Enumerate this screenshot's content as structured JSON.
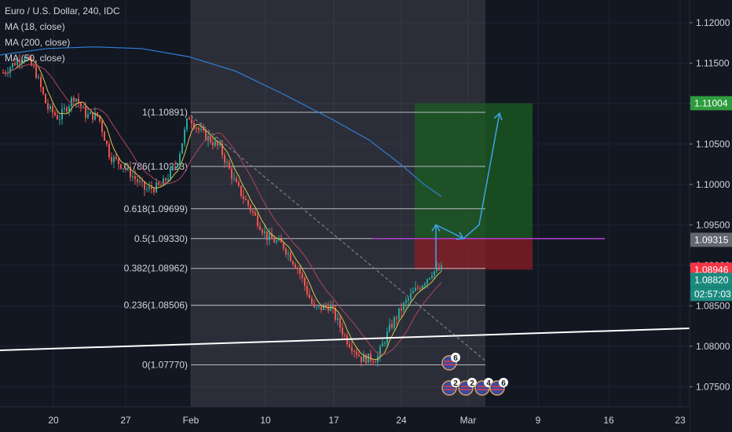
{
  "legend": {
    "symbol": "Euro / U.S. Dollar, 240, IDC",
    "indicators": [
      "MA (18, close)",
      "MA (200, close)",
      "MA (50, close)"
    ]
  },
  "colors": {
    "background": "#131722",
    "ma18": "#d8c84e",
    "ma200": "#2f7fd6",
    "ma50": "#b0455d",
    "up": "#26a69a",
    "down": "#ef5350",
    "fib": "#b8bac2",
    "target_zone": "#1b5e20",
    "stop_zone": "#8e1c24",
    "projection": "#3ea4e8",
    "horizontal": "#b040d0",
    "trendline": "#ffffff"
  },
  "chart_data": {
    "type": "candlestick",
    "x_tick_labels": [
      "20",
      "27",
      "Feb",
      "10",
      "17",
      "24",
      "Mar",
      "9",
      "16",
      "23"
    ],
    "y_tick_labels": [
      "1.12000",
      "1.11500",
      "1.11000",
      "1.10500",
      "1.10000",
      "1.09500",
      "1.09000",
      "1.08500",
      "1.08000",
      "1.07500"
    ],
    "ylim": [
      1.0725,
      1.1228
    ],
    "fibonacci": [
      {
        "label": "1(1.10891)",
        "level": 1.10891
      },
      {
        "label": "0.786(1.10223)",
        "level": 1.10223
      },
      {
        "label": "0.618(1.09699)",
        "level": 1.09699
      },
      {
        "label": "0.5(1.09330)",
        "level": 1.0933
      },
      {
        "label": "0.382(1.08962)",
        "level": 1.08962
      },
      {
        "label": "0.236(1.08506)",
        "level": 1.08506
      },
      {
        "label": "0(1.07770)",
        "level": 1.0777
      }
    ],
    "price_labels": [
      {
        "text": "1.11004",
        "value": 1.11004,
        "bg": "#2e9c3e"
      },
      {
        "text": "1.09315",
        "value": 1.09315,
        "bg": "#636770"
      },
      {
        "text": "1.08946",
        "value": 1.08946,
        "bg": "#f23645"
      },
      {
        "text": "1.08820",
        "value": 1.0882,
        "bg": "#1b8a7e"
      },
      {
        "text": "02:57:03",
        "value": 1.0855,
        "bg": "#1b8a7e"
      }
    ],
    "position": {
      "entry": 1.0933,
      "target": 1.11004,
      "stop": 1.08946
    },
    "event_badges": [
      "6",
      "2",
      "2",
      "4",
      "6"
    ]
  }
}
